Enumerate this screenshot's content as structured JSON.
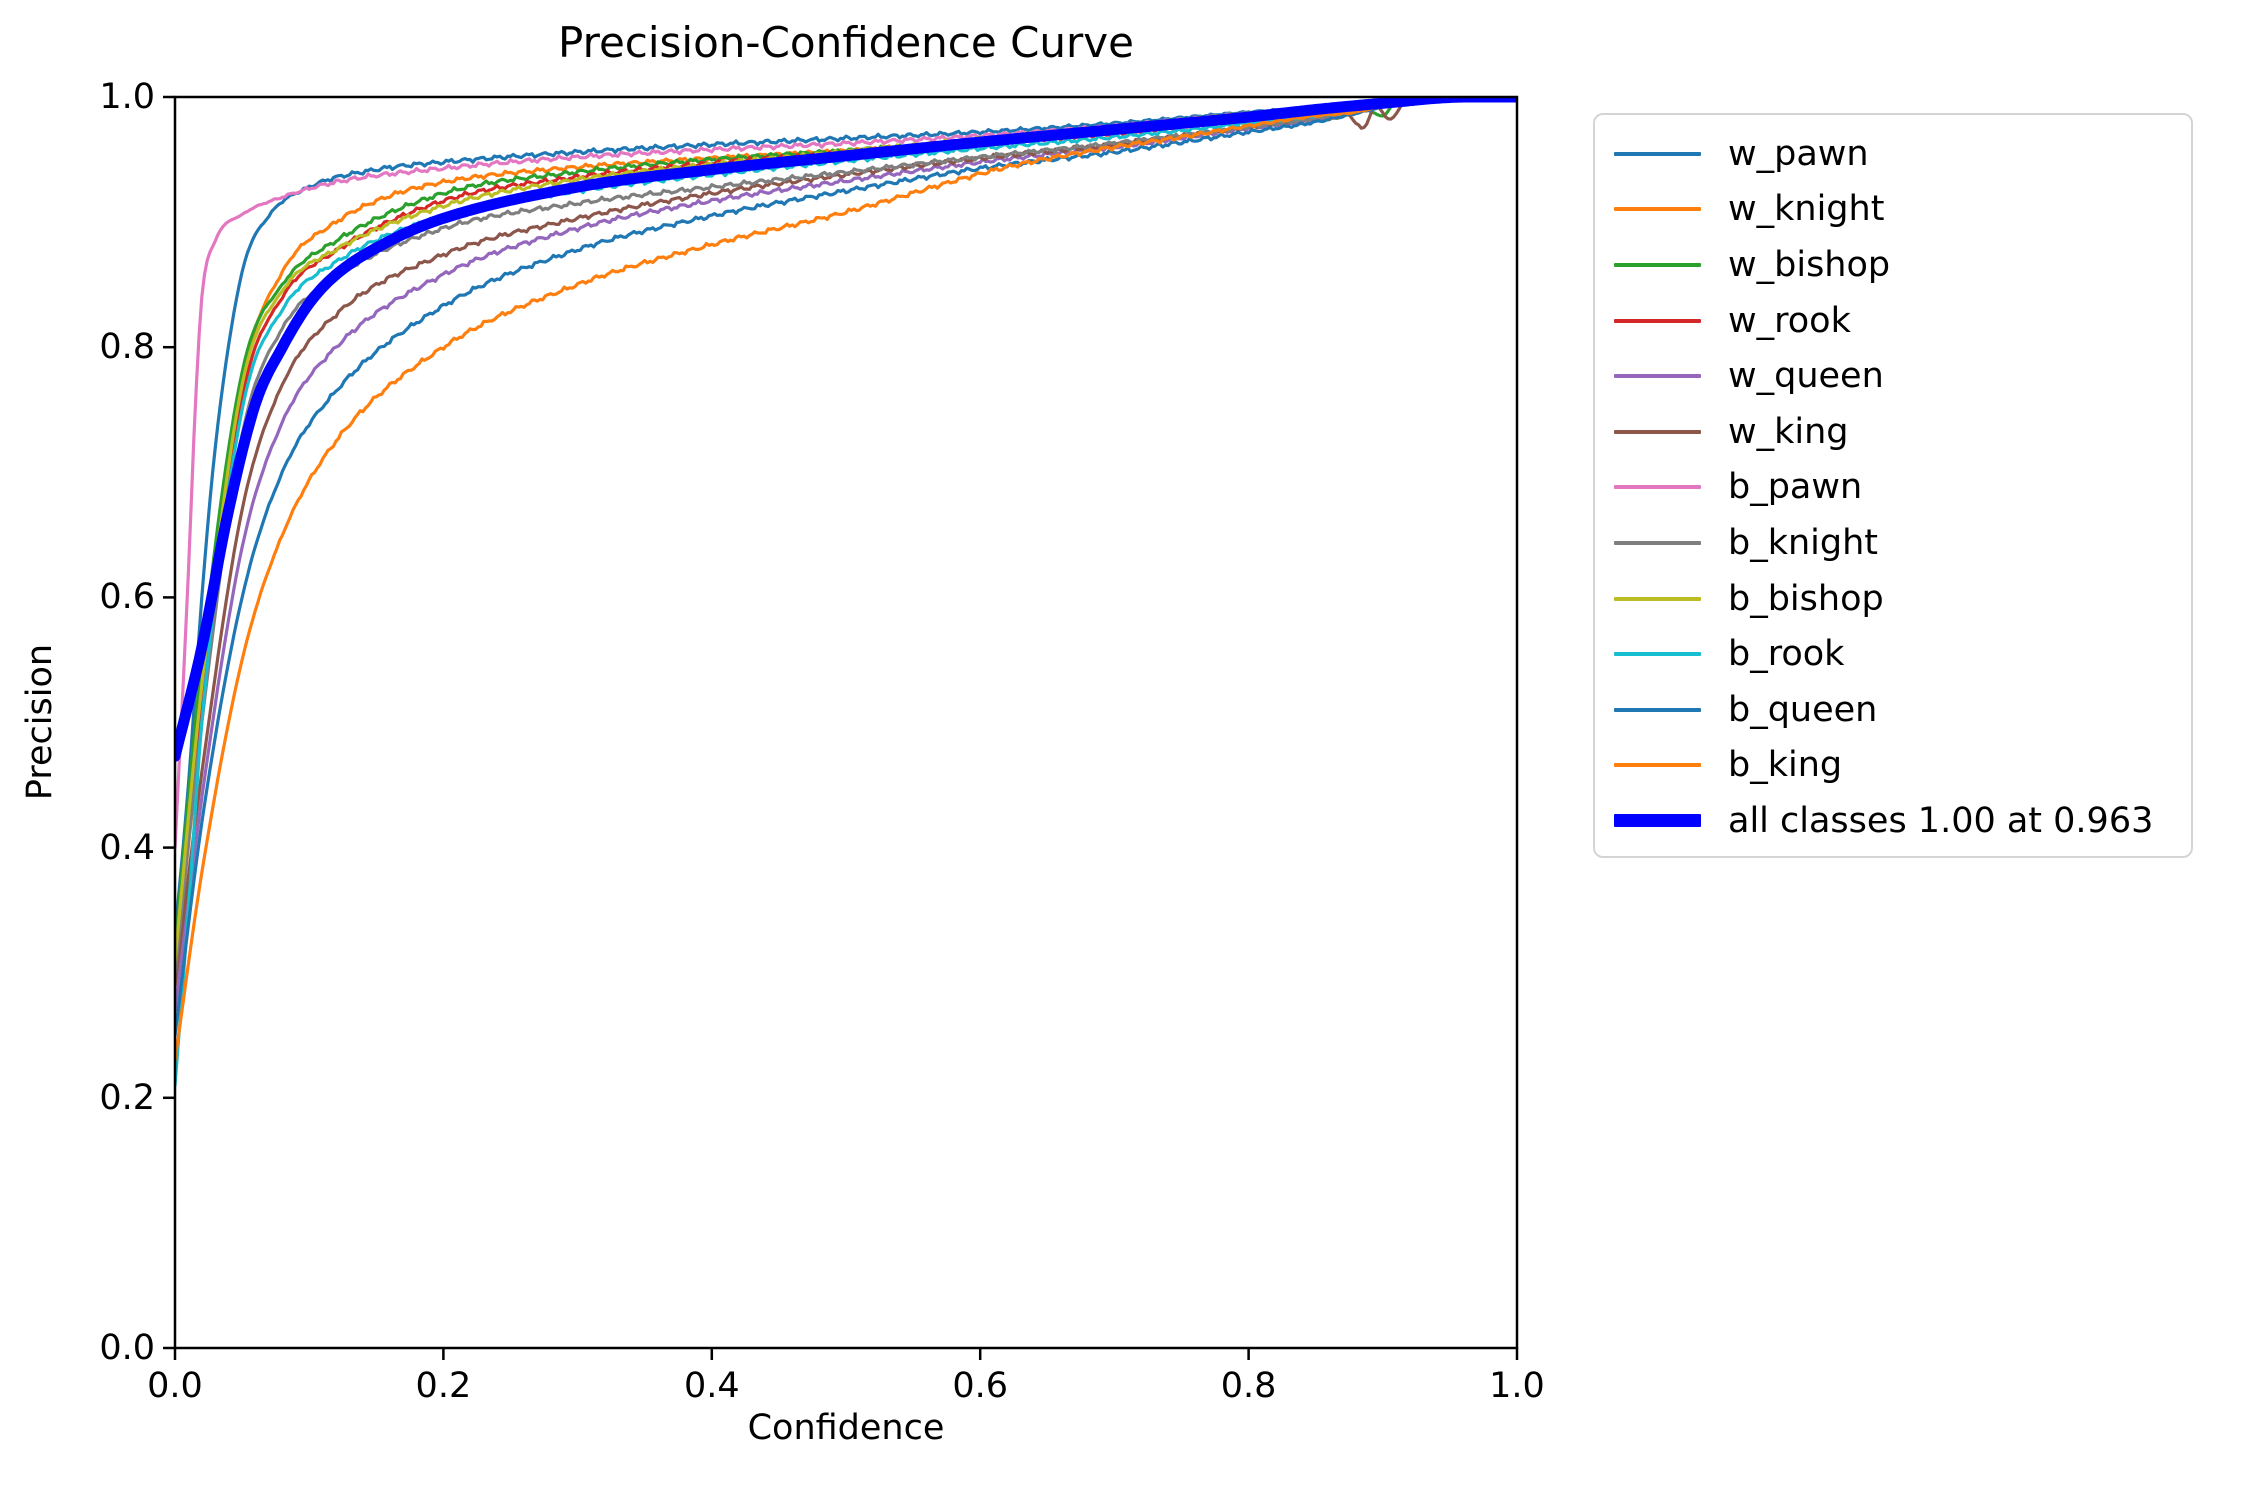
{
  "title": "Precision-Confidence Curve",
  "chart_data": {
    "type": "line",
    "title": "Precision-Confidence Curve",
    "xlabel": "Confidence",
    "ylabel": "Precision",
    "xlim": [
      0.0,
      1.0
    ],
    "ylim": [
      0.0,
      1.0
    ],
    "x_ticks": [
      "0.0",
      "0.2",
      "0.4",
      "0.6",
      "0.8",
      "1.0"
    ],
    "y_ticks": [
      "0.0",
      "0.2",
      "0.4",
      "0.6",
      "0.8",
      "1.0"
    ],
    "grid": false,
    "legend_position": "outside upper right",
    "series": [
      {
        "name": "w_pawn",
        "color": "#1f77b4",
        "thick": false,
        "points": [
          [
            0,
            0.33
          ],
          [
            0.01,
            0.45
          ],
          [
            0.02,
            0.6
          ],
          [
            0.03,
            0.72
          ],
          [
            0.05,
            0.86
          ],
          [
            0.07,
            0.905
          ],
          [
            0.1,
            0.928
          ],
          [
            0.15,
            0.942
          ],
          [
            0.2,
            0.948
          ],
          [
            0.3,
            0.956
          ],
          [
            0.4,
            0.962
          ],
          [
            0.5,
            0.967
          ],
          [
            0.6,
            0.972
          ],
          [
            0.7,
            0.979
          ],
          [
            0.8,
            0.988
          ],
          [
            0.85,
            0.992
          ],
          [
            0.88,
            0.995
          ],
          [
            0.9,
            0.997
          ],
          [
            0.93,
            1.0
          ],
          [
            1,
            1
          ]
        ]
      },
      {
        "name": "w_knight",
        "color": "#ff7f0e",
        "thick": false,
        "points": [
          [
            0,
            0.3
          ],
          [
            0.02,
            0.5
          ],
          [
            0.05,
            0.77
          ],
          [
            0.08,
            0.86
          ],
          [
            0.12,
            0.9
          ],
          [
            0.16,
            0.921
          ],
          [
            0.2,
            0.932
          ],
          [
            0.3,
            0.944
          ],
          [
            0.4,
            0.951
          ],
          [
            0.5,
            0.957
          ],
          [
            0.6,
            0.964
          ],
          [
            0.7,
            0.972
          ],
          [
            0.8,
            0.982
          ],
          [
            0.84,
            0.986
          ],
          [
            0.86,
            0.982
          ],
          [
            0.88,
            0.99
          ],
          [
            0.9,
            0.995
          ],
          [
            0.93,
            1.0
          ],
          [
            1,
            1
          ]
        ]
      },
      {
        "name": "w_bishop",
        "color": "#2ca02c",
        "thick": false,
        "points": [
          [
            0,
            0.32
          ],
          [
            0.02,
            0.55
          ],
          [
            0.05,
            0.78
          ],
          [
            0.08,
            0.85
          ],
          [
            0.12,
            0.885
          ],
          [
            0.2,
            0.923
          ],
          [
            0.3,
            0.94
          ],
          [
            0.4,
            0.95
          ],
          [
            0.5,
            0.957
          ],
          [
            0.6,
            0.965
          ],
          [
            0.7,
            0.973
          ],
          [
            0.8,
            0.984
          ],
          [
            0.88,
            0.993
          ],
          [
            0.9,
            0.985
          ],
          [
            0.91,
            0.997
          ],
          [
            0.93,
            1.0
          ],
          [
            1,
            1
          ]
        ]
      },
      {
        "name": "w_rook",
        "color": "#d62728",
        "thick": false,
        "points": [
          [
            0,
            0.3
          ],
          [
            0.02,
            0.52
          ],
          [
            0.05,
            0.76
          ],
          [
            0.08,
            0.84
          ],
          [
            0.12,
            0.877
          ],
          [
            0.2,
            0.917
          ],
          [
            0.3,
            0.936
          ],
          [
            0.4,
            0.947
          ],
          [
            0.5,
            0.955
          ],
          [
            0.6,
            0.963
          ],
          [
            0.7,
            0.971
          ],
          [
            0.8,
            0.982
          ],
          [
            0.85,
            0.987
          ],
          [
            0.9,
            0.995
          ],
          [
            0.92,
            1.0
          ],
          [
            1,
            1
          ]
        ]
      },
      {
        "name": "w_queen",
        "color": "#9467bd",
        "thick": false,
        "points": [
          [
            0,
            0.27
          ],
          [
            0.02,
            0.44
          ],
          [
            0.05,
            0.64
          ],
          [
            0.08,
            0.74
          ],
          [
            0.12,
            0.8
          ],
          [
            0.2,
            0.858
          ],
          [
            0.3,
            0.895
          ],
          [
            0.4,
            0.917
          ],
          [
            0.5,
            0.933
          ],
          [
            0.6,
            0.948
          ],
          [
            0.7,
            0.96
          ],
          [
            0.8,
            0.975
          ],
          [
            0.85,
            0.982
          ],
          [
            0.9,
            0.993
          ],
          [
            0.93,
            1.0
          ],
          [
            1,
            1
          ]
        ]
      },
      {
        "name": "w_king",
        "color": "#8c564b",
        "thick": false,
        "points": [
          [
            0,
            0.29
          ],
          [
            0.02,
            0.46
          ],
          [
            0.05,
            0.67
          ],
          [
            0.08,
            0.77
          ],
          [
            0.12,
            0.826
          ],
          [
            0.2,
            0.874
          ],
          [
            0.3,
            0.903
          ],
          [
            0.4,
            0.923
          ],
          [
            0.5,
            0.938
          ],
          [
            0.6,
            0.951
          ],
          [
            0.7,
            0.962
          ],
          [
            0.8,
            0.976
          ],
          [
            0.84,
            0.982
          ],
          [
            0.87,
            0.99
          ],
          [
            0.885,
            0.975
          ],
          [
            0.895,
            0.993
          ],
          [
            0.905,
            0.982
          ],
          [
            0.92,
            1.0
          ],
          [
            1,
            1
          ]
        ]
      },
      {
        "name": "b_pawn",
        "color": "#e377c2",
        "thick": false,
        "points": [
          [
            0,
            0.4
          ],
          [
            0.01,
            0.62
          ],
          [
            0.015,
            0.75
          ],
          [
            0.02,
            0.84
          ],
          [
            0.03,
            0.885
          ],
          [
            0.05,
            0.906
          ],
          [
            0.08,
            0.92
          ],
          [
            0.12,
            0.932
          ],
          [
            0.2,
            0.943
          ],
          [
            0.3,
            0.952
          ],
          [
            0.4,
            0.958
          ],
          [
            0.5,
            0.963
          ],
          [
            0.6,
            0.969
          ],
          [
            0.7,
            0.977
          ],
          [
            0.8,
            0.987
          ],
          [
            0.85,
            0.991
          ],
          [
            0.9,
            0.997
          ],
          [
            0.93,
            1.0
          ],
          [
            1,
            1
          ]
        ]
      },
      {
        "name": "b_knight",
        "color": "#7f7f7f",
        "thick": false,
        "points": [
          [
            0,
            0.3
          ],
          [
            0.02,
            0.5
          ],
          [
            0.05,
            0.73
          ],
          [
            0.08,
            0.815
          ],
          [
            0.12,
            0.856
          ],
          [
            0.2,
            0.895
          ],
          [
            0.3,
            0.915
          ],
          [
            0.4,
            0.928
          ],
          [
            0.5,
            0.94
          ],
          [
            0.6,
            0.952
          ],
          [
            0.7,
            0.963
          ],
          [
            0.8,
            0.976
          ],
          [
            0.85,
            0.983
          ],
          [
            0.9,
            0.993
          ],
          [
            0.93,
            1.0
          ],
          [
            1,
            1
          ]
        ]
      },
      {
        "name": "b_bishop",
        "color": "#bcbd22",
        "thick": false,
        "points": [
          [
            0,
            0.31
          ],
          [
            0.02,
            0.53
          ],
          [
            0.05,
            0.77
          ],
          [
            0.08,
            0.845
          ],
          [
            0.12,
            0.878
          ],
          [
            0.2,
            0.913
          ],
          [
            0.3,
            0.934
          ],
          [
            0.4,
            0.946
          ],
          [
            0.5,
            0.956
          ],
          [
            0.6,
            0.966
          ],
          [
            0.7,
            0.976
          ],
          [
            0.8,
            0.987
          ],
          [
            0.85,
            0.991
          ],
          [
            0.9,
            0.997
          ],
          [
            0.93,
            1.0
          ],
          [
            1,
            1
          ]
        ]
      },
      {
        "name": "b_rook",
        "color": "#17becf",
        "thick": false,
        "points": [
          [
            0,
            0.21
          ],
          [
            0.01,
            0.35
          ],
          [
            0.02,
            0.5
          ],
          [
            0.05,
            0.75
          ],
          [
            0.08,
            0.83
          ],
          [
            0.12,
            0.868
          ],
          [
            0.2,
            0.905
          ],
          [
            0.3,
            0.925
          ],
          [
            0.4,
            0.938
          ],
          [
            0.5,
            0.949
          ],
          [
            0.6,
            0.959
          ],
          [
            0.7,
            0.968
          ],
          [
            0.8,
            0.979
          ],
          [
            0.85,
            0.985
          ],
          [
            0.88,
            0.99
          ],
          [
            0.9,
            0.994
          ],
          [
            0.93,
            1.0
          ],
          [
            1,
            1
          ]
        ]
      },
      {
        "name": "b_queen",
        "color": "#1f77b4",
        "thick": false,
        "points": [
          [
            0,
            0.25
          ],
          [
            0.02,
            0.42
          ],
          [
            0.05,
            0.6
          ],
          [
            0.08,
            0.7
          ],
          [
            0.12,
            0.765
          ],
          [
            0.2,
            0.833
          ],
          [
            0.3,
            0.878
          ],
          [
            0.4,
            0.905
          ],
          [
            0.5,
            0.925
          ],
          [
            0.6,
            0.943
          ],
          [
            0.7,
            0.956
          ],
          [
            0.8,
            0.972
          ],
          [
            0.85,
            0.98
          ],
          [
            0.9,
            0.992
          ],
          [
            0.93,
            1.0
          ],
          [
            1,
            1
          ]
        ]
      },
      {
        "name": "b_king",
        "color": "#ff7f0e",
        "thick": false,
        "points": [
          [
            0,
            0.23
          ],
          [
            0.02,
            0.38
          ],
          [
            0.05,
            0.55
          ],
          [
            0.08,
            0.65
          ],
          [
            0.12,
            0.725
          ],
          [
            0.2,
            0.8
          ],
          [
            0.3,
            0.85
          ],
          [
            0.4,
            0.882
          ],
          [
            0.5,
            0.908
          ],
          [
            0.62,
            0.944
          ],
          [
            0.7,
            0.96
          ],
          [
            0.75,
            0.968
          ],
          [
            0.8,
            0.977
          ],
          [
            0.85,
            0.985
          ],
          [
            0.88,
            0.988
          ],
          [
            0.9,
            0.993
          ],
          [
            0.93,
            1.0
          ],
          [
            1,
            1
          ]
        ]
      },
      {
        "name": "all classes 1.00 at 0.963",
        "color": "#0000ff",
        "thick": true,
        "points": [
          [
            0,
            0.473
          ],
          [
            0.02,
            0.56
          ],
          [
            0.04,
            0.67
          ],
          [
            0.06,
            0.755
          ],
          [
            0.08,
            0.8
          ],
          [
            0.1,
            0.835
          ],
          [
            0.12,
            0.858
          ],
          [
            0.16,
            0.885
          ],
          [
            0.2,
            0.903
          ],
          [
            0.3,
            0.928
          ],
          [
            0.4,
            0.942
          ],
          [
            0.5,
            0.953
          ],
          [
            0.6,
            0.964
          ],
          [
            0.7,
            0.974
          ],
          [
            0.8,
            0.984
          ],
          [
            0.85,
            0.99
          ],
          [
            0.9,
            0.995
          ],
          [
            0.963,
            1.0
          ],
          [
            1,
            1
          ]
        ]
      }
    ]
  }
}
